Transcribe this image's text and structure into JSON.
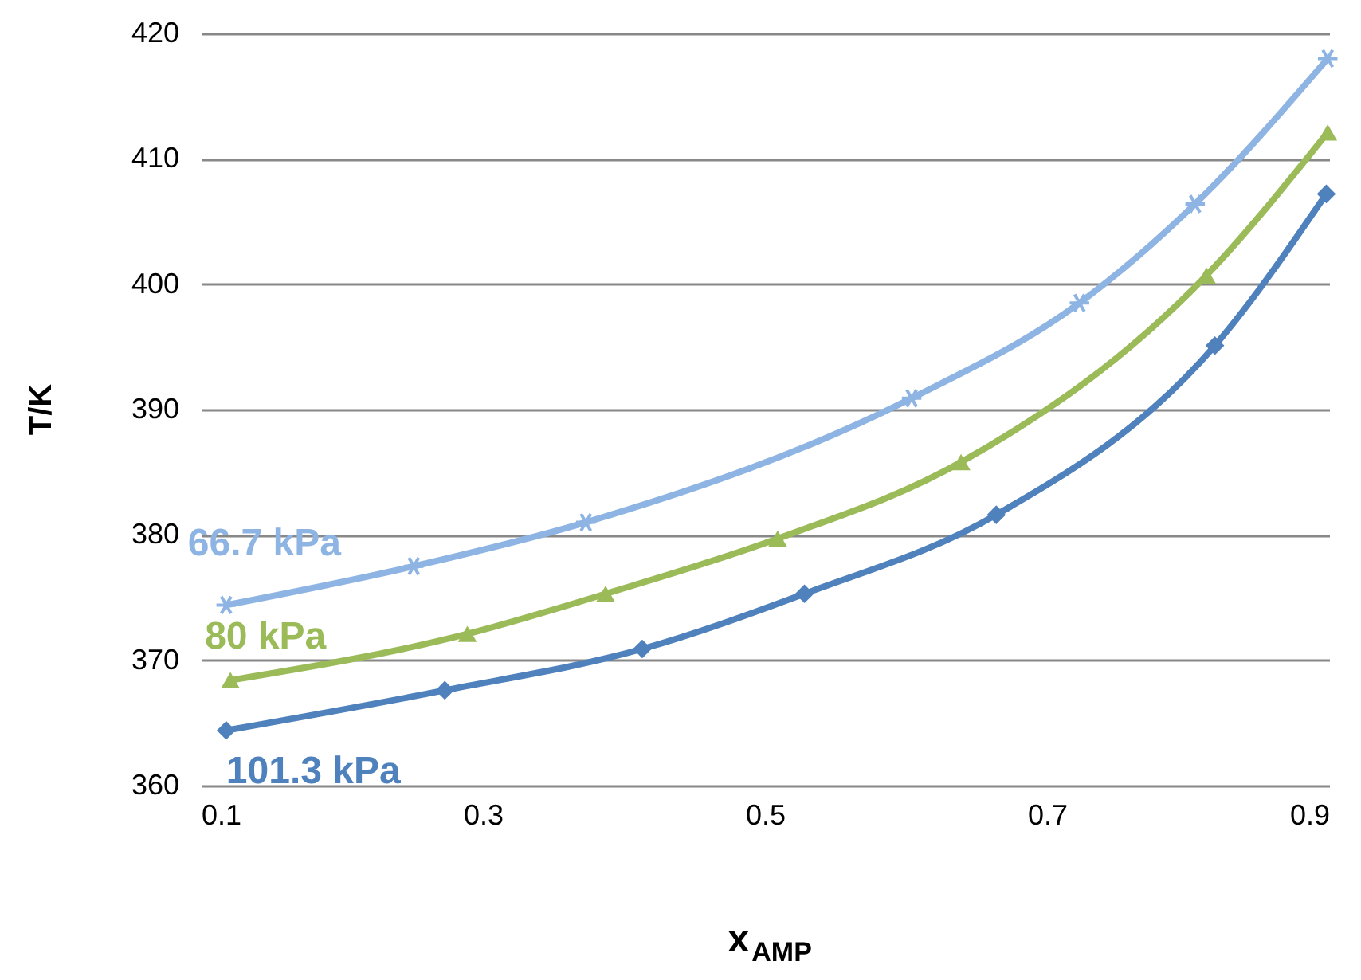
{
  "chart_data": {
    "type": "line",
    "xlabel": "x$_{AMP}$",
    "ylabel": "T/K",
    "xlim": [
      0.1,
      0.9
    ],
    "xticks": [
      0.1,
      0.3,
      0.5,
      0.7,
      0.9
    ],
    "ylim": [
      360,
      420
    ],
    "yticks": [
      360,
      370,
      380,
      390,
      400,
      410,
      420
    ],
    "grid": "y",
    "legend": false,
    "line_style": "solid",
    "series": [
      {
        "name": "101.3 kPa",
        "color": "#4f81bd",
        "marker": "diamond",
        "x": [
          0.118,
          0.273,
          0.413,
          0.528,
          0.664,
          0.819,
          0.898
        ],
        "values": [
          364.4,
          367.6,
          370.9,
          375.3,
          381.6,
          395.1,
          407.2
        ]
      },
      {
        "name": "80 kPa",
        "color": "#9bbb59",
        "marker": "triangle",
        "x": [
          0.121,
          0.289,
          0.387,
          0.509,
          0.639,
          0.813,
          0.899
        ],
        "values": [
          368.4,
          372.1,
          375.3,
          379.7,
          385.8,
          400.7,
          412.1
        ]
      },
      {
        "name": "66.7 kPa",
        "color": "#8eb4e3",
        "marker": "cross",
        "x": [
          0.118,
          0.251,
          0.373,
          0.604,
          0.723,
          0.805,
          0.899
        ],
        "values": [
          374.4,
          377.5,
          381.0,
          390.9,
          398.5,
          406.4,
          418.0
        ]
      }
    ]
  }
}
